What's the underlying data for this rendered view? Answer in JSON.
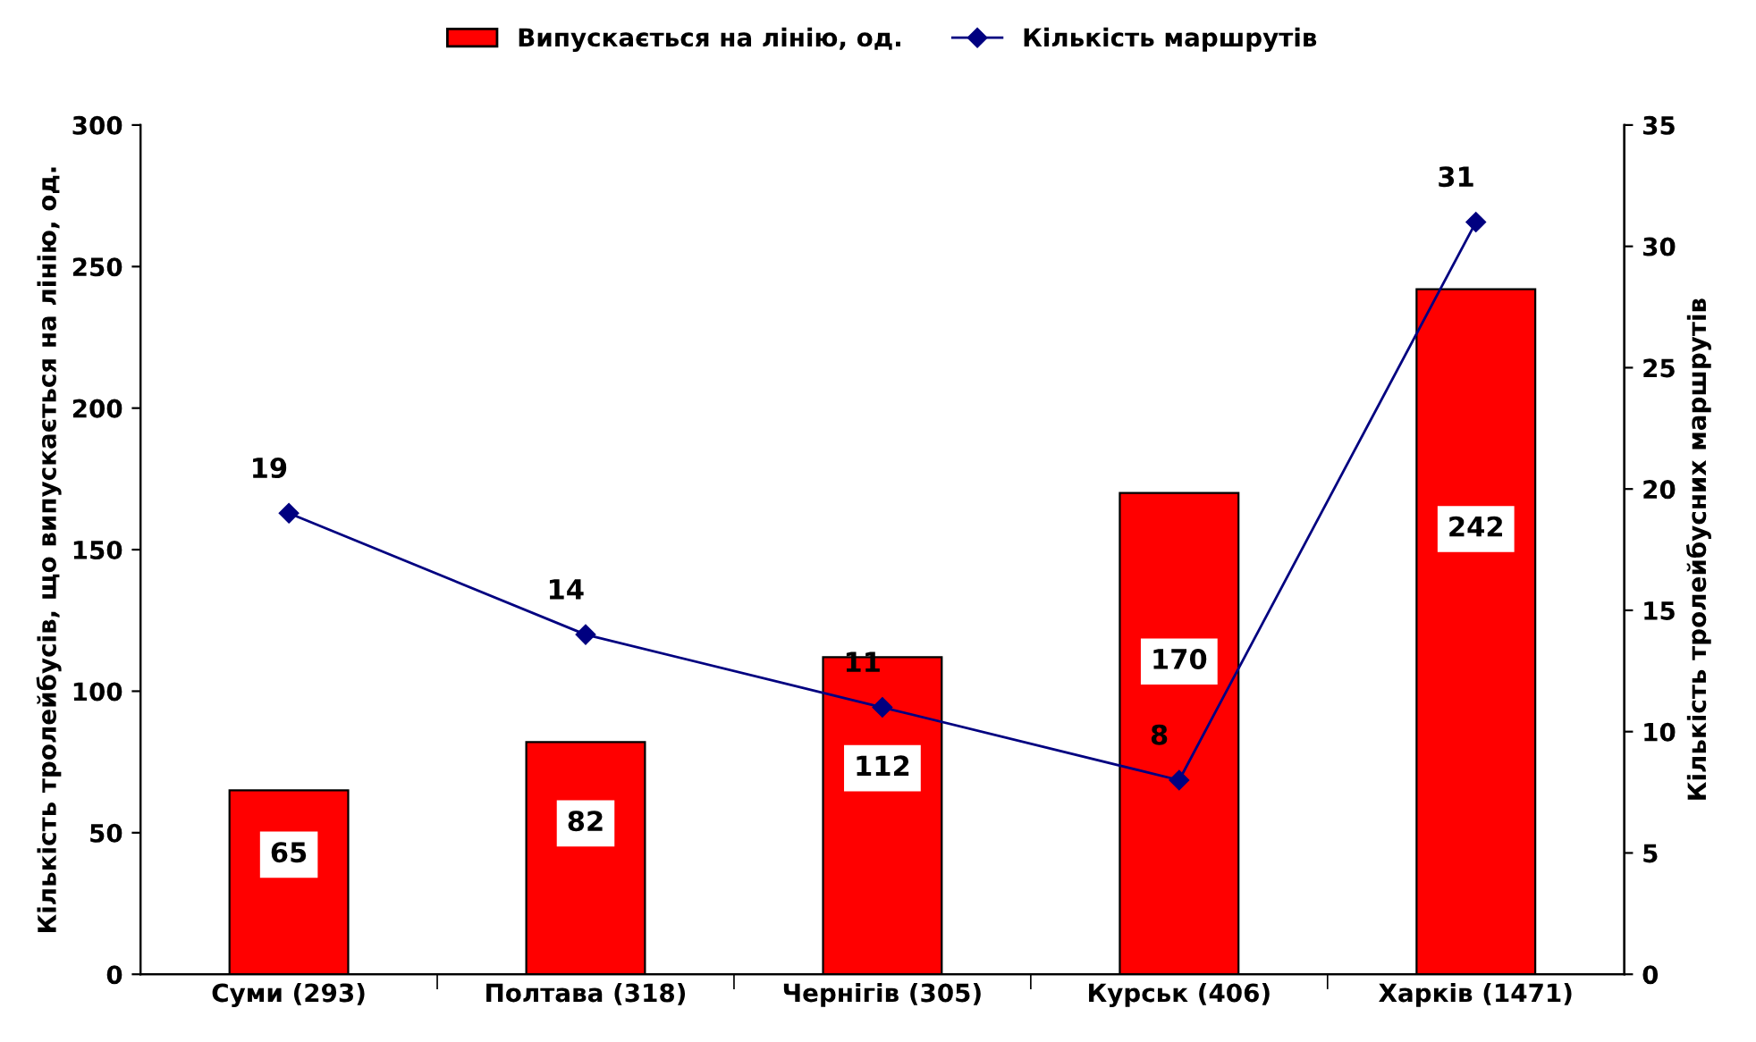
{
  "chart_data": {
    "type": "bar",
    "categories": [
      "Суми (293)",
      "Полтава (318)",
      "Чернігів (305)",
      "Курськ (406)",
      "Харків (1471)"
    ],
    "ylabel": "Кількість тролейбусів, що випускається на лінію, од.",
    "y2label": "Кількість тролейбусних маршрутів",
    "series": [
      {
        "name": "Випускається на лінію, од.",
        "color": "#ff0000",
        "values": [
          65,
          82,
          112,
          170,
          242
        ]
      },
      {
        "name": "Кількість маршрутів",
        "type": "line",
        "axis": "y2",
        "color": "#000080",
        "marker": "diamond",
        "values": [
          19,
          14,
          11,
          8,
          31
        ]
      }
    ],
    "ylim": [
      0,
      300
    ],
    "yticks": [
      0,
      50,
      100,
      150,
      200,
      250,
      300
    ],
    "y2lim": [
      0,
      35
    ],
    "y2ticks": [
      0,
      5,
      10,
      15,
      20,
      25,
      30,
      35
    ],
    "data_labels": true,
    "grid": false,
    "legend": "top"
  }
}
